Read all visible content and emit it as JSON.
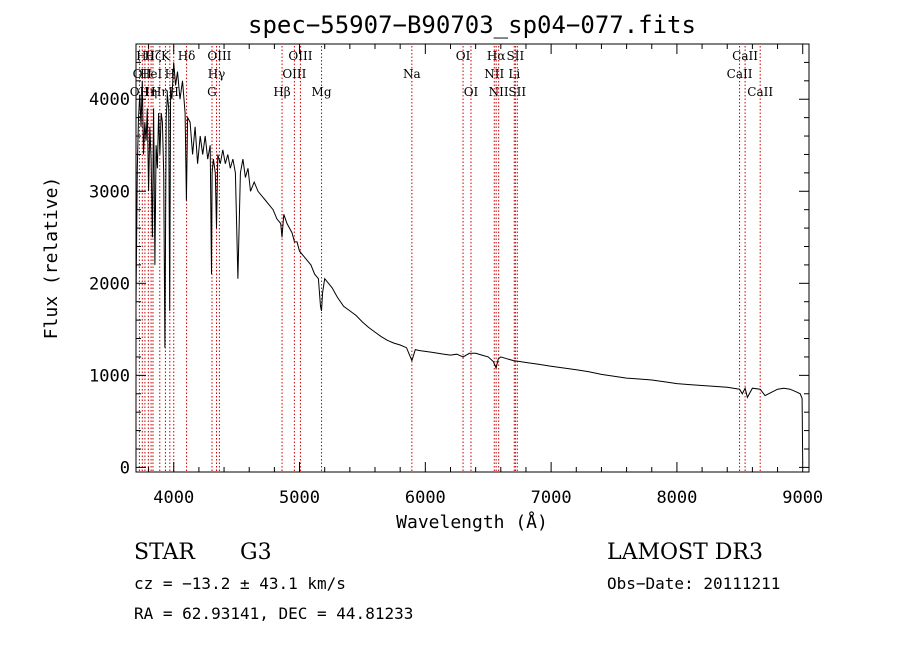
{
  "chart_data": {
    "type": "line",
    "title": "spec−55907−B90703_sp04−077.fits",
    "xlabel": "Wavelength (Å)",
    "ylabel": "Flux (relative)",
    "xlim": [
      3700,
      9050
    ],
    "ylim": [
      -50,
      4600
    ],
    "x_ticks": [
      4000,
      5000,
      6000,
      7000,
      8000,
      9000
    ],
    "y_ticks": [
      0,
      1000,
      2000,
      3000,
      4000
    ],
    "series": [
      {
        "name": "spectrum",
        "x": [
          3700,
          3710,
          3720,
          3730,
          3740,
          3750,
          3760,
          3770,
          3780,
          3790,
          3800,
          3810,
          3820,
          3830,
          3840,
          3850,
          3860,
          3870,
          3880,
          3890,
          3900,
          3910,
          3920,
          3930,
          3940,
          3950,
          3960,
          3968,
          3975,
          3985,
          4000,
          4015,
          4030,
          4050,
          4070,
          4090,
          4101,
          4110,
          4130,
          4150,
          4170,
          4190,
          4210,
          4230,
          4250,
          4270,
          4290,
          4300,
          4305,
          4315,
          4330,
          4340,
          4350,
          4370,
          4390,
          4410,
          4430,
          4450,
          4470,
          4490,
          4510,
          4530,
          4550,
          4570,
          4590,
          4610,
          4640,
          4670,
          4700,
          4730,
          4760,
          4790,
          4820,
          4850,
          4861,
          4875,
          4900,
          4920,
          4940,
          4960,
          4980,
          5000,
          5030,
          5060,
          5090,
          5120,
          5150,
          5167,
          5175,
          5183,
          5200,
          5230,
          5260,
          5300,
          5350,
          5400,
          5450,
          5500,
          5550,
          5600,
          5650,
          5700,
          5750,
          5800,
          5850,
          5893,
          5920,
          5950,
          6000,
          6050,
          6100,
          6150,
          6200,
          6250,
          6300,
          6350,
          6400,
          6450,
          6500,
          6540,
          6563,
          6580,
          6600,
          6650,
          6700,
          6750,
          6800,
          6900,
          7000,
          7100,
          7200,
          7300,
          7400,
          7500,
          7600,
          7700,
          7800,
          7900,
          8000,
          8100,
          8200,
          8300,
          8400,
          8498,
          8520,
          8542,
          8560,
          8600,
          8662,
          8700,
          8800,
          8850,
          8900,
          8950,
          8980,
          8995,
          9000
        ],
        "y": [
          1750,
          3250,
          3800,
          4050,
          3700,
          4200,
          3400,
          3750,
          3550,
          3900,
          3000,
          3700,
          3350,
          2500,
          3900,
          2200,
          3500,
          3250,
          3850,
          3400,
          3850,
          3750,
          3200,
          1300,
          3800,
          4050,
          3900,
          1700,
          4100,
          4000,
          4400,
          4150,
          4300,
          4000,
          4200,
          3850,
          2900,
          3800,
          3750,
          3400,
          3700,
          3300,
          3600,
          3400,
          3600,
          3350,
          3500,
          2100,
          3200,
          3350,
          3200,
          2600,
          3400,
          3300,
          3450,
          3300,
          3400,
          3250,
          3350,
          3200,
          2050,
          3200,
          3350,
          3150,
          3250,
          3000,
          3100,
          3000,
          2950,
          2900,
          2850,
          2800,
          2700,
          2650,
          2500,
          2750,
          2650,
          2600,
          2550,
          2450,
          2450,
          2350,
          2300,
          2250,
          2200,
          2100,
          2050,
          1750,
          1700,
          1900,
          2050,
          2000,
          1950,
          1850,
          1750,
          1700,
          1650,
          1580,
          1520,
          1470,
          1420,
          1380,
          1350,
          1330,
          1300,
          1160,
          1280,
          1270,
          1260,
          1250,
          1240,
          1230,
          1220,
          1230,
          1200,
          1240,
          1240,
          1220,
          1200,
          1150,
          1080,
          1180,
          1200,
          1180,
          1160,
          1150,
          1140,
          1120,
          1100,
          1080,
          1060,
          1040,
          1010,
          990,
          970,
          960,
          950,
          930,
          910,
          900,
          890,
          880,
          870,
          850,
          800,
          860,
          760,
          860,
          850,
          780,
          850,
          860,
          850,
          820,
          800,
          750,
          50
        ]
      }
    ],
    "spectral_lines": [
      {
        "wave": 3727,
        "label": "OII",
        "row": 2
      },
      {
        "wave": 3750,
        "label": "OII",
        "row": 1
      },
      {
        "wave": 3771,
        "label": "Hθ",
        "row": 0
      },
      {
        "wave": 3798,
        "label": "Hη",
        "row": 2
      },
      {
        "wave": 3820,
        "label": "HeI",
        "row": 1
      },
      {
        "wave": 3835,
        "label": "Hζ",
        "row": 0
      },
      {
        "wave": 3889,
        "label": "Hη",
        "row": 2
      },
      {
        "wave": 3934,
        "label": "K",
        "row": 0
      },
      {
        "wave": 3969,
        "label": "H",
        "row": 1
      },
      {
        "wave": 4000,
        "label": "H",
        "row": 2
      },
      {
        "wave": 4102,
        "label": "Hδ",
        "row": 0
      },
      {
        "wave": 4304,
        "label": "G",
        "row": 2
      },
      {
        "wave": 4340,
        "label": "Hγ",
        "row": 1
      },
      {
        "wave": 4363,
        "label": "OIII",
        "row": 0
      },
      {
        "wave": 4861,
        "label": "Hβ",
        "row": 2
      },
      {
        "wave": 4959,
        "label": "OIII",
        "row": 1
      },
      {
        "wave": 5007,
        "label": "OIII",
        "row": 0
      },
      {
        "wave": 5175,
        "label": "Mg",
        "row": 2
      },
      {
        "wave": 5893,
        "label": "Na",
        "row": 1
      },
      {
        "wave": 6300,
        "label": "OI",
        "row": 0
      },
      {
        "wave": 6363,
        "label": "OI",
        "row": 2
      },
      {
        "wave": 6548,
        "label": "NII",
        "row": 1
      },
      {
        "wave": 6563,
        "label": "Hα",
        "row": 0
      },
      {
        "wave": 6583,
        "label": "NII",
        "row": 2
      },
      {
        "wave": 6707,
        "label": "Li",
        "row": 1
      },
      {
        "wave": 6716,
        "label": "SII",
        "row": 0
      },
      {
        "wave": 6731,
        "label": "SII",
        "row": 2
      },
      {
        "wave": 8498,
        "label": "CaII",
        "row": 1
      },
      {
        "wave": 8542,
        "label": "CaII",
        "row": 0
      },
      {
        "wave": 8662,
        "label": "CaII",
        "row": 2
      }
    ],
    "line_color": "#000000",
    "marker_color": "#cc0000"
  },
  "info": {
    "object_class": "STAR",
    "subclass": "G3",
    "survey": "LAMOST DR3",
    "redshift": "cz = −13.2 ± 43.1 km/s",
    "obs_date": "Obs−Date: 20111211",
    "coords": "RA =  62.93141, DEC =  44.81233"
  }
}
